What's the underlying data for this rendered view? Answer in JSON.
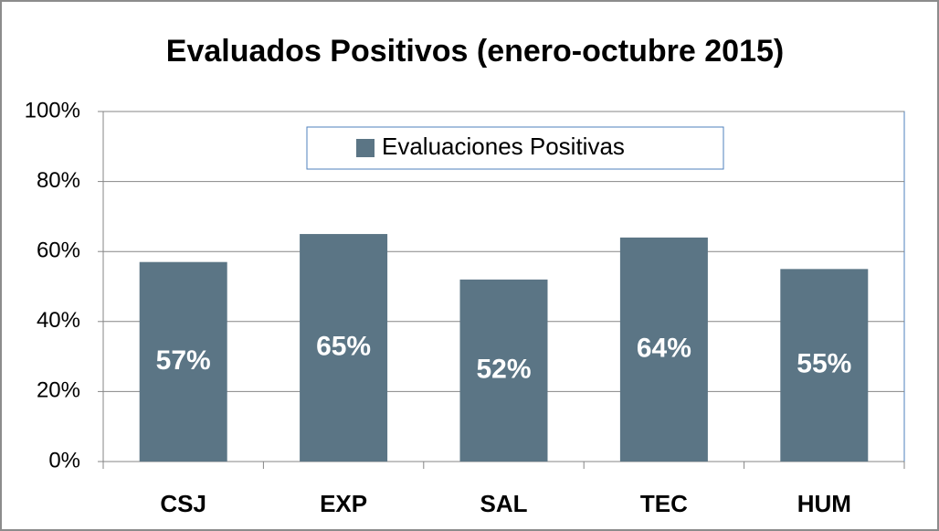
{
  "chart_data": {
    "type": "bar",
    "title": "Evaluados Positivos (enero-octubre 2015)",
    "categories": [
      "CSJ",
      "EXP",
      "SAL",
      "TEC",
      "HUM"
    ],
    "series": [
      {
        "name": "Evaluaciones Positivas",
        "color": "#5b7585",
        "values": [
          57,
          65,
          52,
          64,
          55
        ],
        "value_labels": [
          "57%",
          "65%",
          "52%",
          "64%",
          "55%"
        ]
      }
    ],
    "ylim": [
      0,
      100
    ],
    "yticks": [
      {
        "value": 0,
        "label": "0%"
      },
      {
        "value": 20,
        "label": "20%"
      },
      {
        "value": 40,
        "label": "40%"
      },
      {
        "value": 60,
        "label": "60%"
      },
      {
        "value": 80,
        "label": "80%"
      },
      {
        "value": 100,
        "label": "100%"
      }
    ],
    "grid": true,
    "legend": "top"
  }
}
